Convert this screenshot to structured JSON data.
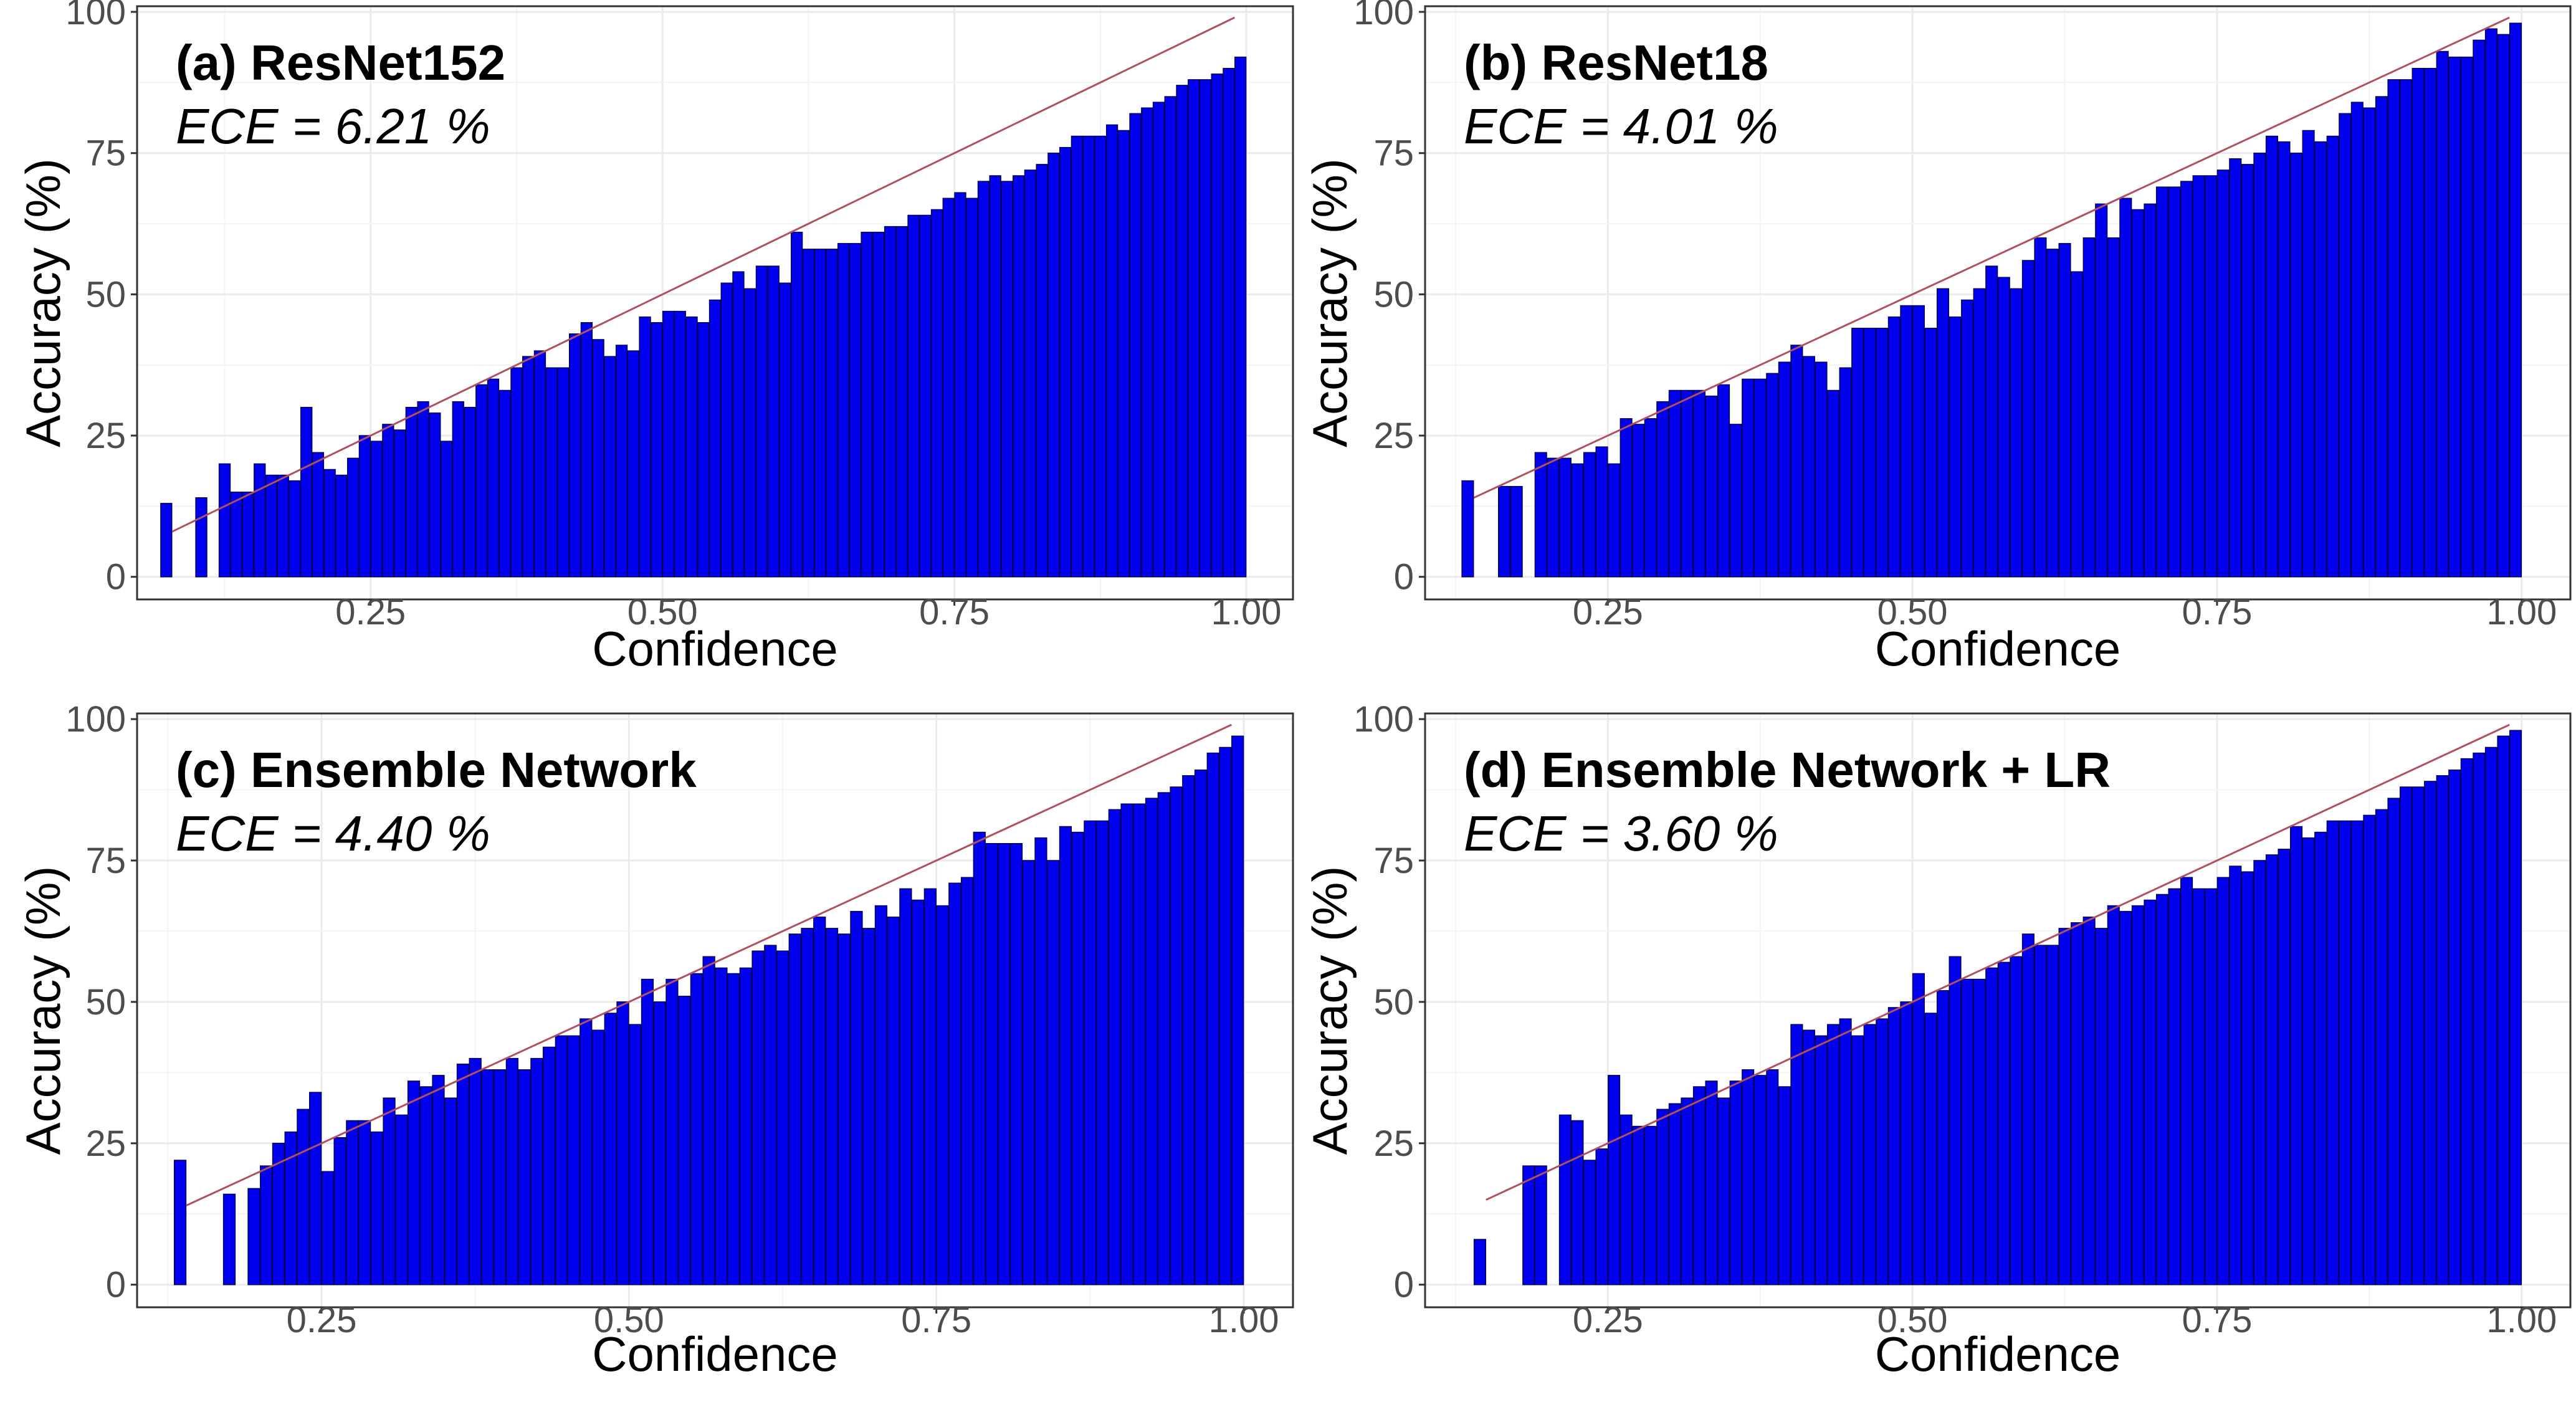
{
  "chart_data": [
    {
      "type": "bar",
      "panel_label": "(a) ResNet152",
      "annotation": "ECE = 6.21 %",
      "xlabel": "Confidence",
      "ylabel": "Accuracy (%)",
      "xlim": [
        0.05,
        1.04
      ],
      "ylim": [
        -4,
        101
      ],
      "xticks": [
        "0.25",
        "0.50",
        "0.75",
        "1.00"
      ],
      "yticks": [
        "0",
        "25",
        "50",
        "75",
        "100"
      ],
      "grid": true,
      "bar_width": 0.0095,
      "diagonal": [
        0.08,
        0.99
      ],
      "x": [
        0.075,
        0.105,
        0.125,
        0.135,
        0.145,
        0.155,
        0.165,
        0.175,
        0.185,
        0.195,
        0.205,
        0.215,
        0.225,
        0.235,
        0.245,
        0.255,
        0.265,
        0.275,
        0.285,
        0.295,
        0.305,
        0.315,
        0.325,
        0.335,
        0.345,
        0.355,
        0.365,
        0.375,
        0.385,
        0.395,
        0.405,
        0.415,
        0.425,
        0.435,
        0.445,
        0.455,
        0.465,
        0.475,
        0.485,
        0.495,
        0.505,
        0.515,
        0.525,
        0.535,
        0.545,
        0.555,
        0.565,
        0.575,
        0.585,
        0.595,
        0.605,
        0.615,
        0.625,
        0.635,
        0.645,
        0.655,
        0.665,
        0.675,
        0.685,
        0.695,
        0.705,
        0.715,
        0.725,
        0.735,
        0.745,
        0.755,
        0.765,
        0.775,
        0.785,
        0.795,
        0.805,
        0.815,
        0.825,
        0.835,
        0.845,
        0.855,
        0.865,
        0.875,
        0.885,
        0.895,
        0.905,
        0.915,
        0.925,
        0.935,
        0.945,
        0.955,
        0.965,
        0.975,
        0.985,
        0.995
      ],
      "values": [
        13,
        14,
        20,
        15,
        15,
        20,
        18,
        18,
        17,
        30,
        22,
        19,
        18,
        21,
        25,
        24,
        27,
        26,
        30,
        31,
        29,
        24,
        31,
        30,
        34,
        35,
        33,
        37,
        39,
        40,
        37,
        37,
        43,
        45,
        42,
        39,
        41,
        40,
        46,
        45,
        47,
        47,
        46,
        45,
        49,
        52,
        54,
        51,
        55,
        55,
        52,
        61,
        58,
        58,
        58,
        59,
        59,
        61,
        61,
        62,
        62,
        64,
        64,
        65,
        67,
        68,
        67,
        70,
        71,
        70,
        71,
        72,
        73,
        75,
        76,
        78,
        78,
        78,
        80,
        79,
        82,
        83,
        84,
        85,
        87,
        88,
        88,
        89,
        90,
        92
      ]
    },
    {
      "type": "bar",
      "panel_label": "(b) ResNet18",
      "annotation": "ECE = 4.01 %",
      "xlabel": "Confidence",
      "ylabel": "Accuracy (%)",
      "xlim": [
        0.1,
        1.04
      ],
      "ylim": [
        -4,
        101
      ],
      "xticks": [
        "0.25",
        "0.50",
        "0.75",
        "1.00"
      ],
      "yticks": [
        "0",
        "25",
        "50",
        "75",
        "100"
      ],
      "grid": true,
      "bar_width": 0.0095,
      "diagonal": [
        0.14,
        0.99
      ],
      "x": [
        0.135,
        0.165,
        0.175,
        0.195,
        0.205,
        0.215,
        0.225,
        0.235,
        0.245,
        0.255,
        0.265,
        0.275,
        0.285,
        0.295,
        0.305,
        0.315,
        0.325,
        0.335,
        0.345,
        0.355,
        0.365,
        0.375,
        0.385,
        0.395,
        0.405,
        0.415,
        0.425,
        0.435,
        0.445,
        0.455,
        0.465,
        0.475,
        0.485,
        0.495,
        0.505,
        0.515,
        0.525,
        0.535,
        0.545,
        0.555,
        0.565,
        0.575,
        0.585,
        0.595,
        0.605,
        0.615,
        0.625,
        0.635,
        0.645,
        0.655,
        0.665,
        0.675,
        0.685,
        0.695,
        0.705,
        0.715,
        0.725,
        0.735,
        0.745,
        0.755,
        0.765,
        0.775,
        0.785,
        0.795,
        0.805,
        0.815,
        0.825,
        0.835,
        0.845,
        0.855,
        0.865,
        0.875,
        0.885,
        0.895,
        0.905,
        0.915,
        0.925,
        0.935,
        0.945,
        0.955,
        0.965,
        0.975,
        0.985,
        0.995
      ],
      "values": [
        17,
        16,
        16,
        22,
        21,
        21,
        20,
        22,
        23,
        20,
        28,
        27,
        28,
        31,
        33,
        33,
        33,
        32,
        34,
        27,
        35,
        35,
        36,
        38,
        41,
        39,
        38,
        33,
        37,
        44,
        44,
        44,
        46,
        48,
        48,
        44,
        51,
        46,
        49,
        51,
        55,
        53,
        51,
        56,
        60,
        58,
        59,
        54,
        60,
        66,
        60,
        67,
        65,
        66,
        69,
        69,
        70,
        71,
        71,
        72,
        74,
        73,
        75,
        78,
        77,
        75,
        79,
        77,
        78,
        82,
        84,
        83,
        85,
        88,
        88,
        90,
        90,
        93,
        92,
        92,
        95,
        97,
        96,
        98
      ]
    },
    {
      "type": "bar",
      "panel_label": "(c) Ensemble Network",
      "annotation": "ECE = 4.40 %",
      "xlabel": "Confidence",
      "ylabel": "Accuracy (%)",
      "xlim": [
        0.1,
        1.04
      ],
      "ylim": [
        -4,
        101
      ],
      "xticks": [
        "0.25",
        "0.50",
        "0.75",
        "1.00"
      ],
      "yticks": [
        "0",
        "25",
        "50",
        "75",
        "100"
      ],
      "grid": true,
      "bar_width": 0.0095,
      "diagonal": [
        0.14,
        0.99
      ],
      "x": [
        0.135,
        0.175,
        0.195,
        0.205,
        0.215,
        0.225,
        0.235,
        0.245,
        0.255,
        0.265,
        0.275,
        0.285,
        0.295,
        0.305,
        0.315,
        0.325,
        0.335,
        0.345,
        0.355,
        0.365,
        0.375,
        0.385,
        0.395,
        0.405,
        0.415,
        0.425,
        0.435,
        0.445,
        0.455,
        0.465,
        0.475,
        0.485,
        0.495,
        0.505,
        0.515,
        0.525,
        0.535,
        0.545,
        0.555,
        0.565,
        0.575,
        0.585,
        0.595,
        0.605,
        0.615,
        0.625,
        0.635,
        0.645,
        0.655,
        0.665,
        0.675,
        0.685,
        0.695,
        0.705,
        0.715,
        0.725,
        0.735,
        0.745,
        0.755,
        0.765,
        0.775,
        0.785,
        0.795,
        0.805,
        0.815,
        0.825,
        0.835,
        0.845,
        0.855,
        0.865,
        0.875,
        0.885,
        0.895,
        0.905,
        0.915,
        0.925,
        0.935,
        0.945,
        0.955,
        0.965,
        0.975,
        0.985,
        0.995
      ],
      "values": [
        22,
        16,
        17,
        21,
        25,
        27,
        31,
        34,
        20,
        26,
        29,
        29,
        27,
        33,
        30,
        36,
        35,
        37,
        33,
        39,
        40,
        38,
        38,
        40,
        38,
        40,
        42,
        44,
        44,
        47,
        45,
        48,
        50,
        46,
        54,
        50,
        54,
        51,
        55,
        58,
        56,
        55,
        56,
        59,
        60,
        59,
        62,
        63,
        65,
        63,
        62,
        66,
        63,
        67,
        65,
        70,
        68,
        70,
        67,
        71,
        72,
        80,
        78,
        78,
        78,
        75,
        79,
        75,
        81,
        80,
        82,
        82,
        84,
        85,
        85,
        86,
        87,
        88,
        90,
        91,
        94,
        95,
        97
      ]
    },
    {
      "type": "bar",
      "panel_label": "(d) Ensemble Network + LR",
      "annotation": "ECE = 3.60 %",
      "xlabel": "Confidence",
      "ylabel": "Accuracy (%)",
      "xlim": [
        0.1,
        1.04
      ],
      "ylim": [
        -4,
        101
      ],
      "xticks": [
        "0.25",
        "0.50",
        "0.75",
        "1.00"
      ],
      "yticks": [
        "0",
        "25",
        "50",
        "75",
        "100"
      ],
      "grid": true,
      "bar_width": 0.0095,
      "diagonal": [
        0.15,
        0.99
      ],
      "x": [
        0.145,
        0.185,
        0.195,
        0.215,
        0.225,
        0.235,
        0.245,
        0.255,
        0.265,
        0.275,
        0.285,
        0.295,
        0.305,
        0.315,
        0.325,
        0.335,
        0.345,
        0.355,
        0.365,
        0.375,
        0.385,
        0.395,
        0.405,
        0.415,
        0.425,
        0.435,
        0.445,
        0.455,
        0.465,
        0.475,
        0.485,
        0.495,
        0.505,
        0.515,
        0.525,
        0.535,
        0.545,
        0.555,
        0.565,
        0.575,
        0.585,
        0.595,
        0.605,
        0.615,
        0.625,
        0.635,
        0.645,
        0.655,
        0.665,
        0.675,
        0.685,
        0.695,
        0.705,
        0.715,
        0.725,
        0.735,
        0.745,
        0.755,
        0.765,
        0.775,
        0.785,
        0.795,
        0.805,
        0.815,
        0.825,
        0.835,
        0.845,
        0.855,
        0.865,
        0.875,
        0.885,
        0.895,
        0.905,
        0.915,
        0.925,
        0.935,
        0.945,
        0.955,
        0.965,
        0.975,
        0.985,
        0.995
      ],
      "values": [
        8,
        21,
        21,
        30,
        29,
        22,
        24,
        37,
        30,
        28,
        28,
        31,
        32,
        33,
        35,
        36,
        33,
        36,
        38,
        37,
        38,
        35,
        46,
        45,
        44,
        46,
        47,
        44,
        46,
        47,
        49,
        50,
        55,
        48,
        52,
        58,
        54,
        54,
        56,
        57,
        58,
        62,
        60,
        60,
        63,
        64,
        65,
        63,
        67,
        66,
        67,
        68,
        69,
        70,
        72,
        70,
        70,
        72,
        74,
        73,
        75,
        76,
        77,
        81,
        79,
        80,
        82,
        82,
        82,
        83,
        84,
        86,
        88,
        88,
        89,
        90,
        91,
        93,
        94,
        95,
        97,
        98
      ]
    }
  ]
}
